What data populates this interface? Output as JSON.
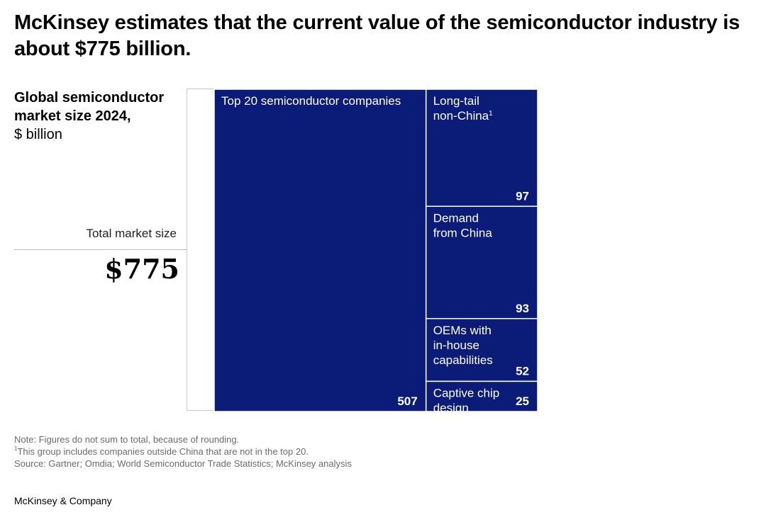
{
  "title": "McKinsey estimates that the current value of the semiconductor industry is about $775 billion.",
  "chart_data": {
    "type": "treemap",
    "title": "Global semiconductor market size 2024,",
    "unit": "$ billion",
    "total_label": "Total market size",
    "total_value": "$775",
    "total": 775,
    "color": "#0b1c78",
    "segments": [
      {
        "label": "Top 20 semiconductor companies",
        "value": 507
      },
      {
        "label": "Long-tail non-China",
        "label_lines": [
          "Long-tail",
          "non-China"
        ],
        "footnote": "1",
        "value": 97
      },
      {
        "label": "Demand from China",
        "label_lines": [
          "Demand",
          "from China"
        ],
        "value": 93
      },
      {
        "label": "OEMs with in-house capabilities",
        "label_lines": [
          "OEMs with",
          "in-house",
          "capabilities"
        ],
        "value": 52
      },
      {
        "label": "Captive chip design",
        "label_lines": [
          "Captive chip",
          "design"
        ],
        "value": 25
      }
    ]
  },
  "notes": {
    "note": "Note: Figures do not sum to total, because of rounding.",
    "footnote_mark": "1",
    "footnote": "This group includes companies outside China that are not in the top 20.",
    "source": "Source: Gartner; Omdia; World Semiconductor Trade Statistics; McKinsey analysis"
  },
  "brand": "McKinsey & Company"
}
